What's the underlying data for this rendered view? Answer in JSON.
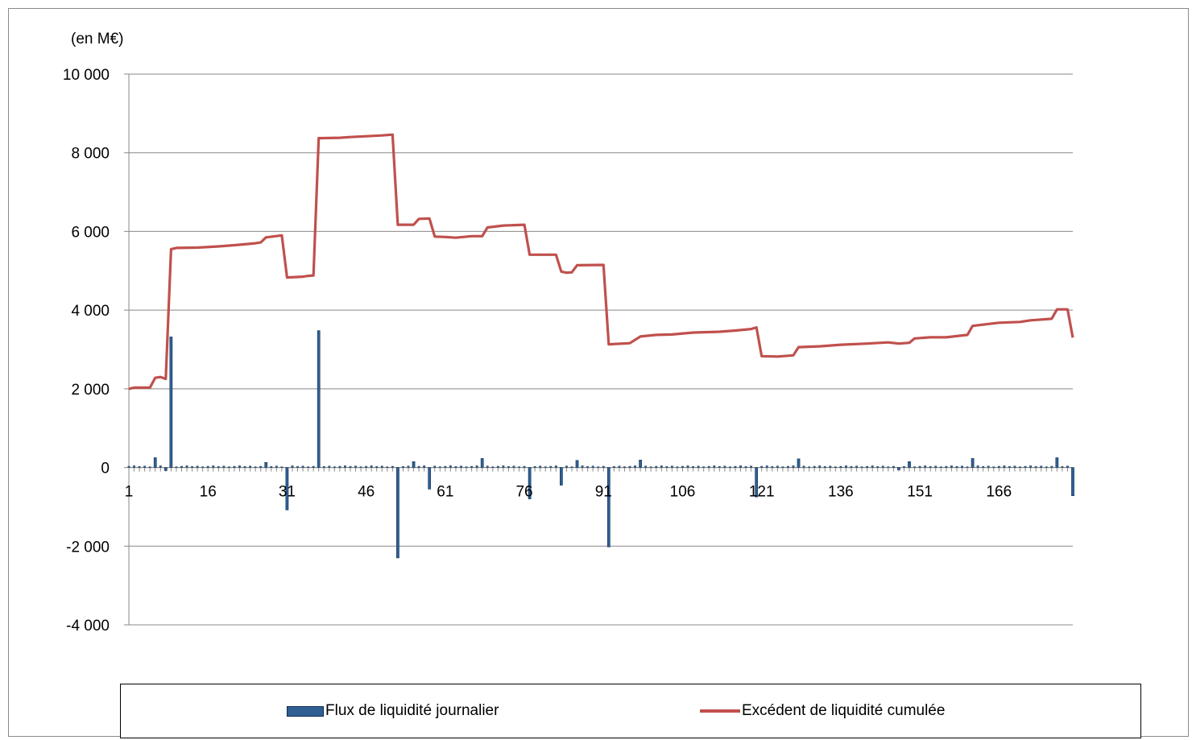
{
  "chart_data": {
    "type": "bar",
    "unit_label": "(en M€)",
    "ylim": [
      -4000,
      10000
    ],
    "y_ticks": [
      10000,
      8000,
      6000,
      4000,
      2000,
      0,
      -2000,
      -4000
    ],
    "y_tick_labels": [
      "10 000",
      "8 000",
      "6 000",
      "4 000",
      "2 000",
      "0",
      "-2 000",
      "-4 000"
    ],
    "x_range": [
      1,
      180
    ],
    "x_ticks": [
      1,
      16,
      31,
      46,
      61,
      76,
      91,
      106,
      121,
      136,
      151,
      166
    ],
    "x_tick_labels": [
      "1",
      "16",
      "31",
      "46",
      "61",
      "76",
      "91",
      "106",
      "121",
      "136",
      "151",
      "166"
    ],
    "grid": true,
    "legend_position": "bottom",
    "series": [
      {
        "name": "Flux de liquidité journalier",
        "type": "bar",
        "color": "#2f5f93",
        "points": [
          [
            6,
            250
          ],
          [
            8,
            -80
          ],
          [
            9,
            3320
          ],
          [
            27,
            130
          ],
          [
            31,
            -1080
          ],
          [
            37,
            3480
          ],
          [
            52,
            -2300
          ],
          [
            55,
            150
          ],
          [
            58,
            -550
          ],
          [
            68,
            230
          ],
          [
            77,
            -800
          ],
          [
            83,
            -450
          ],
          [
            86,
            180
          ],
          [
            92,
            -2020
          ],
          [
            98,
            190
          ],
          [
            120,
            -750
          ],
          [
            128,
            220
          ],
          [
            147,
            -60
          ],
          [
            149,
            150
          ],
          [
            161,
            230
          ],
          [
            177,
            250
          ],
          [
            180,
            -720
          ]
        ]
      },
      {
        "name": "Excédent de liquidité cumulée",
        "type": "line",
        "color": "#c0504d",
        "points": [
          [
            1,
            2000
          ],
          [
            2,
            2030
          ],
          [
            5,
            2030
          ],
          [
            6,
            2280
          ],
          [
            7,
            2300
          ],
          [
            8,
            2250
          ],
          [
            9,
            5550
          ],
          [
            10,
            5580
          ],
          [
            14,
            5590
          ],
          [
            18,
            5620
          ],
          [
            21,
            5650
          ],
          [
            25,
            5700
          ],
          [
            26,
            5720
          ],
          [
            27,
            5850
          ],
          [
            30,
            5900
          ],
          [
            31,
            4830
          ],
          [
            34,
            4850
          ],
          [
            35,
            4870
          ],
          [
            36,
            4880
          ],
          [
            37,
            8370
          ],
          [
            41,
            8380
          ],
          [
            43,
            8400
          ],
          [
            49,
            8440
          ],
          [
            51,
            8460
          ],
          [
            52,
            6170
          ],
          [
            55,
            6170
          ],
          [
            56,
            6320
          ],
          [
            58,
            6330
          ],
          [
            59,
            5870
          ],
          [
            61,
            5860
          ],
          [
            63,
            5840
          ],
          [
            66,
            5880
          ],
          [
            68,
            5880
          ],
          [
            69,
            6100
          ],
          [
            72,
            6150
          ],
          [
            76,
            6170
          ],
          [
            77,
            5410
          ],
          [
            82,
            5410
          ],
          [
            83,
            4980
          ],
          [
            84,
            4950
          ],
          [
            85,
            4960
          ],
          [
            86,
            5140
          ],
          [
            91,
            5150
          ],
          [
            92,
            3130
          ],
          [
            96,
            3160
          ],
          [
            98,
            3330
          ],
          [
            101,
            3370
          ],
          [
            104,
            3380
          ],
          [
            108,
            3430
          ],
          [
            113,
            3450
          ],
          [
            116,
            3480
          ],
          [
            119,
            3520
          ],
          [
            120,
            3560
          ],
          [
            121,
            2830
          ],
          [
            124,
            2820
          ],
          [
            127,
            2850
          ],
          [
            128,
            3060
          ],
          [
            132,
            3080
          ],
          [
            136,
            3120
          ],
          [
            141,
            3150
          ],
          [
            145,
            3180
          ],
          [
            147,
            3150
          ],
          [
            149,
            3170
          ],
          [
            150,
            3280
          ],
          [
            153,
            3310
          ],
          [
            156,
            3310
          ],
          [
            160,
            3370
          ],
          [
            161,
            3600
          ],
          [
            166,
            3680
          ],
          [
            170,
            3700
          ],
          [
            172,
            3740
          ],
          [
            176,
            3780
          ],
          [
            177,
            4020
          ],
          [
            179,
            4020
          ],
          [
            180,
            3300
          ]
        ]
      }
    ]
  }
}
